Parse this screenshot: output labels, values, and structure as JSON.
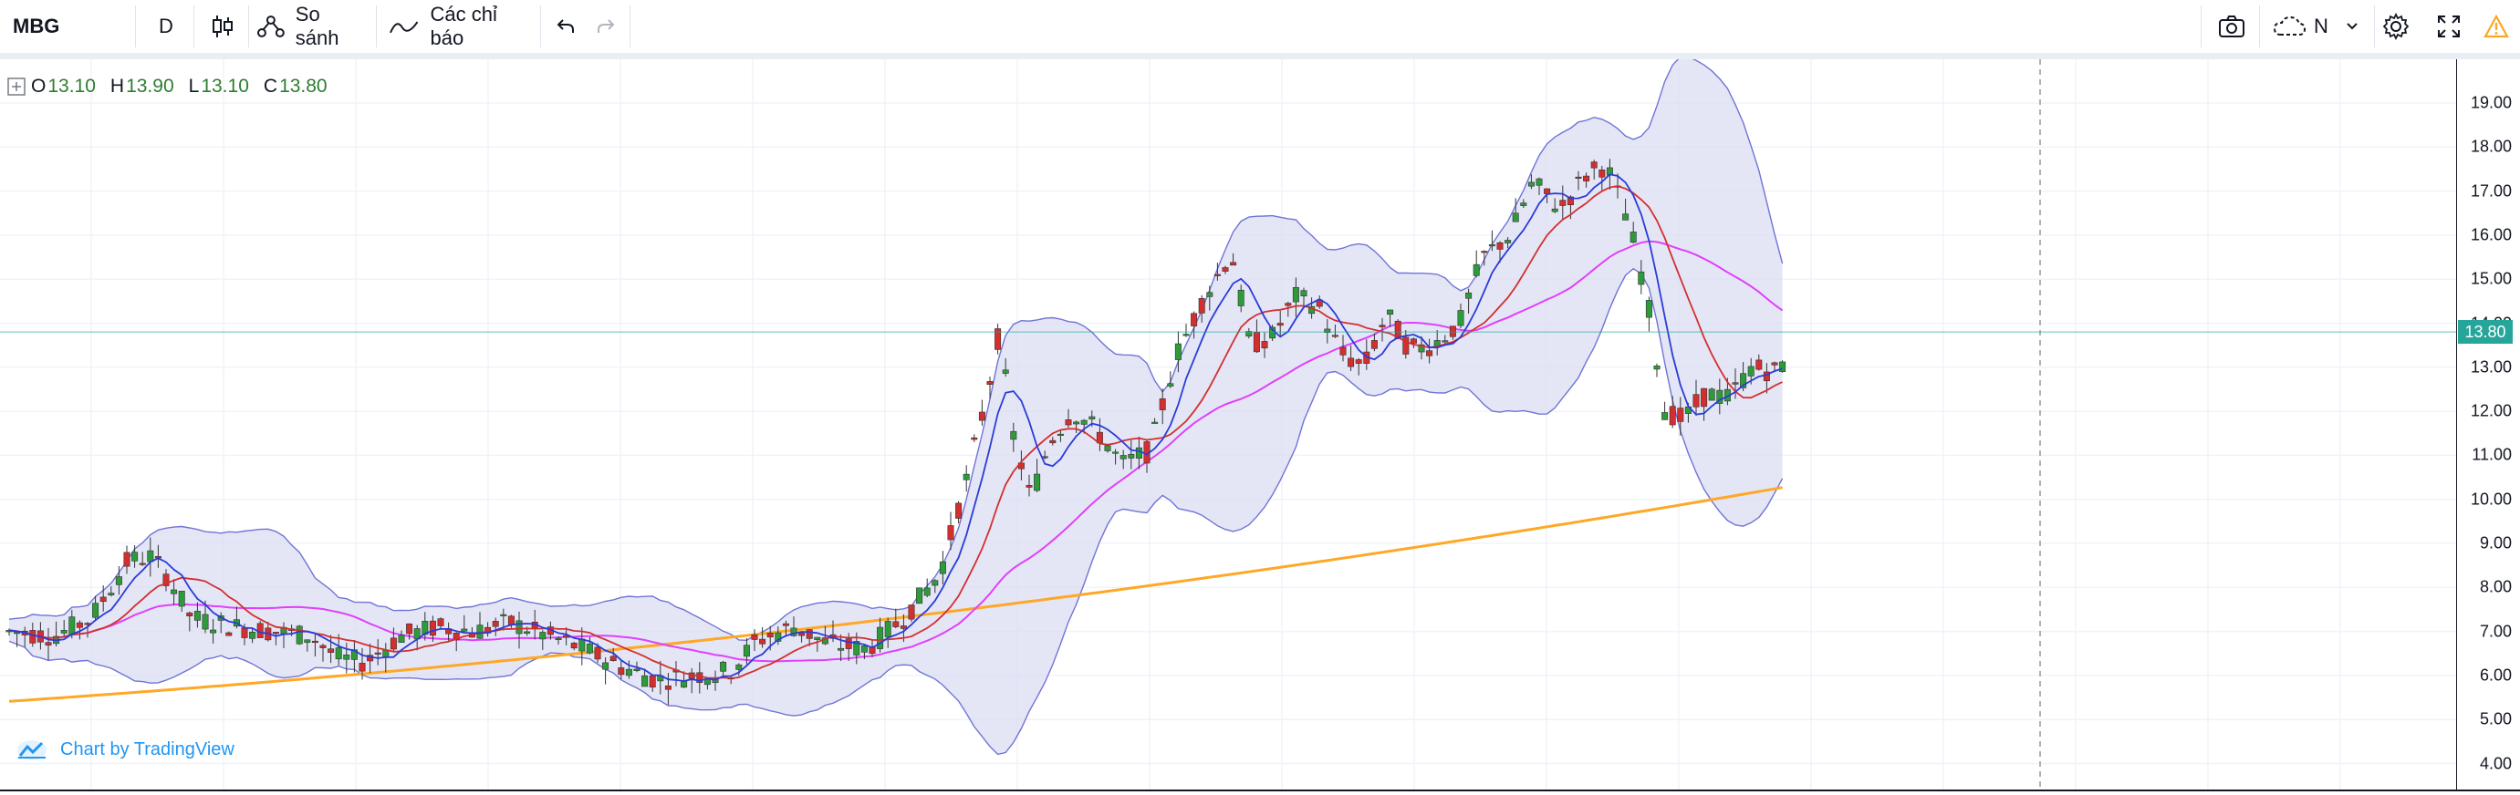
{
  "toolbar": {
    "symbol": "MBG",
    "interval": "D",
    "compare_label": "So sánh",
    "indicators_label": "Các chỉ báo",
    "layout_label": "N"
  },
  "legend": {
    "o_label": "O",
    "o_value": "13.10",
    "h_label": "H",
    "h_value": "13.90",
    "l_label": "L",
    "l_value": "13.10",
    "c_label": "C",
    "c_value": "13.80"
  },
  "watermark": {
    "text": "Chart by TradingView"
  },
  "colors": {
    "up": "#26a69a",
    "up_body": "#2e9b3a",
    "down": "#d32f2f",
    "bollinger_fill": "#d9dcf2",
    "bollinger_line": "#6f74d6",
    "ma_blue": "#2b3bd8",
    "ma_red": "#d32f2f",
    "ma_magenta": "#e040fb",
    "ma_orange": "#ffa726",
    "price_line": "#26a69a",
    "warning": "#f9a825"
  },
  "chart_data": {
    "type": "candlestick",
    "ylim": [
      3.6,
      19.6
    ],
    "y_ticks": [
      "19.00",
      "18.00",
      "17.00",
      "16.00",
      "15.00",
      "14.00",
      "13.00",
      "12.00",
      "11.00",
      "10.00",
      "9.00",
      "8.00",
      "7.00",
      "6.00",
      "5.00",
      "4.00"
    ],
    "last_price": "13.80",
    "last_price_value": 13.8
  }
}
